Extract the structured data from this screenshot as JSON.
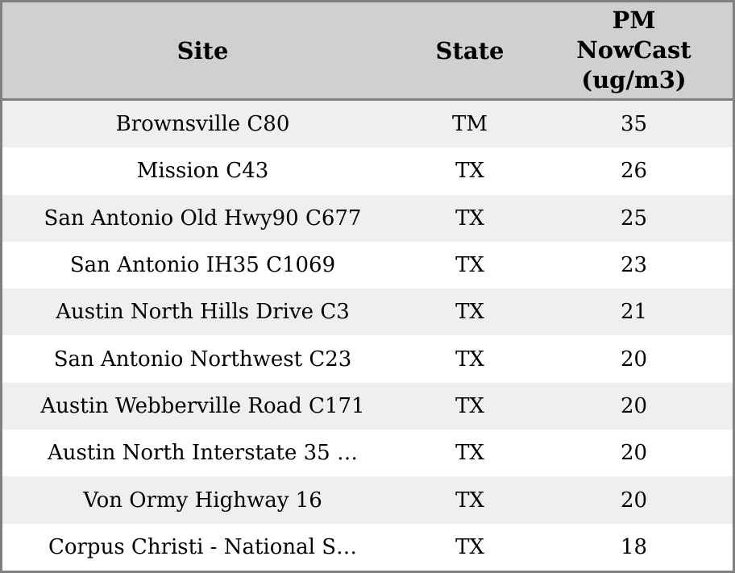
{
  "table": {
    "columns": {
      "site_label": "Site",
      "state_label": "State",
      "pm_label_lines": {
        "0": "PM",
        "1": "NowCast",
        "2": "(ug/m3)"
      }
    },
    "rows": [
      {
        "site": "Brownsville C80",
        "state": "TM",
        "pm": "35"
      },
      {
        "site": "Mission C43",
        "state": "TX",
        "pm": "26"
      },
      {
        "site": "San Antonio Old Hwy90 C677",
        "state": "TX",
        "pm": "25"
      },
      {
        "site": "San Antonio IH35 C1069",
        "state": "TX",
        "pm": "23"
      },
      {
        "site": "Austin North Hills Drive C3",
        "state": "TX",
        "pm": "21"
      },
      {
        "site": "San Antonio Northwest C23",
        "state": "TX",
        "pm": "20"
      },
      {
        "site": "Austin Webberville Road C171",
        "state": "TX",
        "pm": "20"
      },
      {
        "site": "Austin North Interstate 35 …",
        "state": "TX",
        "pm": "20"
      },
      {
        "site": "Von Ormy Highway 16",
        "state": "TX",
        "pm": "20"
      },
      {
        "site": "Corpus Christi - National S…",
        "state": "TX",
        "pm": "18"
      }
    ]
  },
  "colors": {
    "header_bg": "#d0d0d0",
    "row_alt_bg": "#efefef",
    "row_bg": "#ffffff",
    "border": "#808080",
    "text": "#000000"
  }
}
